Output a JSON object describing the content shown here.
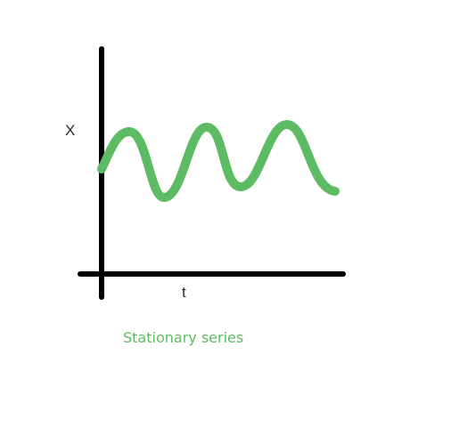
{
  "diagram": {
    "y_axis_label": "X",
    "x_axis_label": "t",
    "caption": "Stationary series",
    "colors": {
      "axes": "#000000",
      "series": "#5dbb63",
      "caption": "#5dbb63",
      "label_text": "#2a2a2a"
    }
  }
}
